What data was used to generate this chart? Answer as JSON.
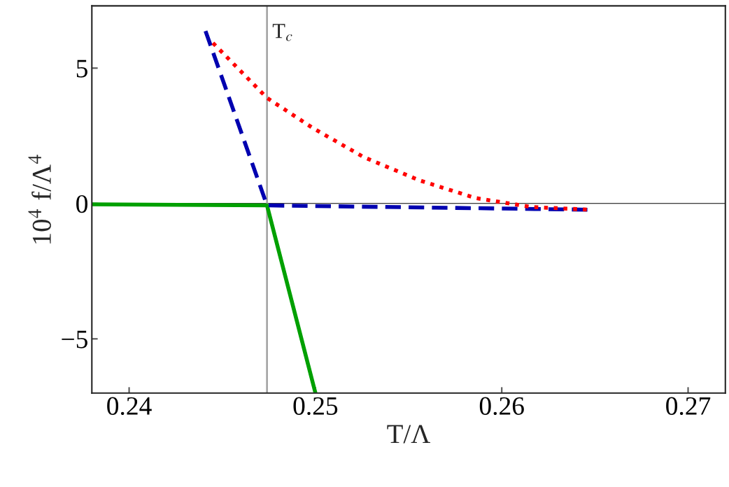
{
  "chart_data": {
    "type": "line",
    "xlabel": "T/Λ",
    "ylabel": "10$^{4}$ f/Λ$^{4}$",
    "series": [
      {
        "color": "#00a000",
        "line_style": "solid",
        "x": [
          0.238,
          0.2474,
          0.25
        ],
        "values": [
          -0.03,
          -0.07,
          -7.0
        ]
      },
      {
        "color": "#0000b0",
        "line_style": "dashed",
        "x": [
          0.2441,
          0.2474,
          0.2647
        ],
        "values": [
          6.37,
          -0.07,
          -0.23
        ]
      },
      {
        "color": "#ff0000",
        "line_style": "dotted",
        "x": [
          0.2445,
          0.2474,
          0.2499,
          0.2526,
          0.2556,
          0.2586,
          0.2616,
          0.2647
        ],
        "values": [
          5.93,
          3.9,
          2.77,
          1.71,
          0.85,
          0.2,
          -0.13,
          -0.23
        ]
      }
    ],
    "xlim": [
      0.238,
      0.272
    ],
    "ylim": [
      -7,
      7.3
    ],
    "xticks": [
      0.24,
      0.25,
      0.26,
      0.27
    ],
    "yticks": [
      {
        "value": -5,
        "label": "−5"
      },
      0,
      5
    ],
    "ref_lines": [
      {
        "axis": "y",
        "value": 0,
        "color": "#000000"
      },
      {
        "axis": "x",
        "value": 0.2474,
        "label": "T$_{c}$",
        "color": "#a0a0a0"
      }
    ],
    "grid": false,
    "legend": false,
    "marker": "none"
  }
}
